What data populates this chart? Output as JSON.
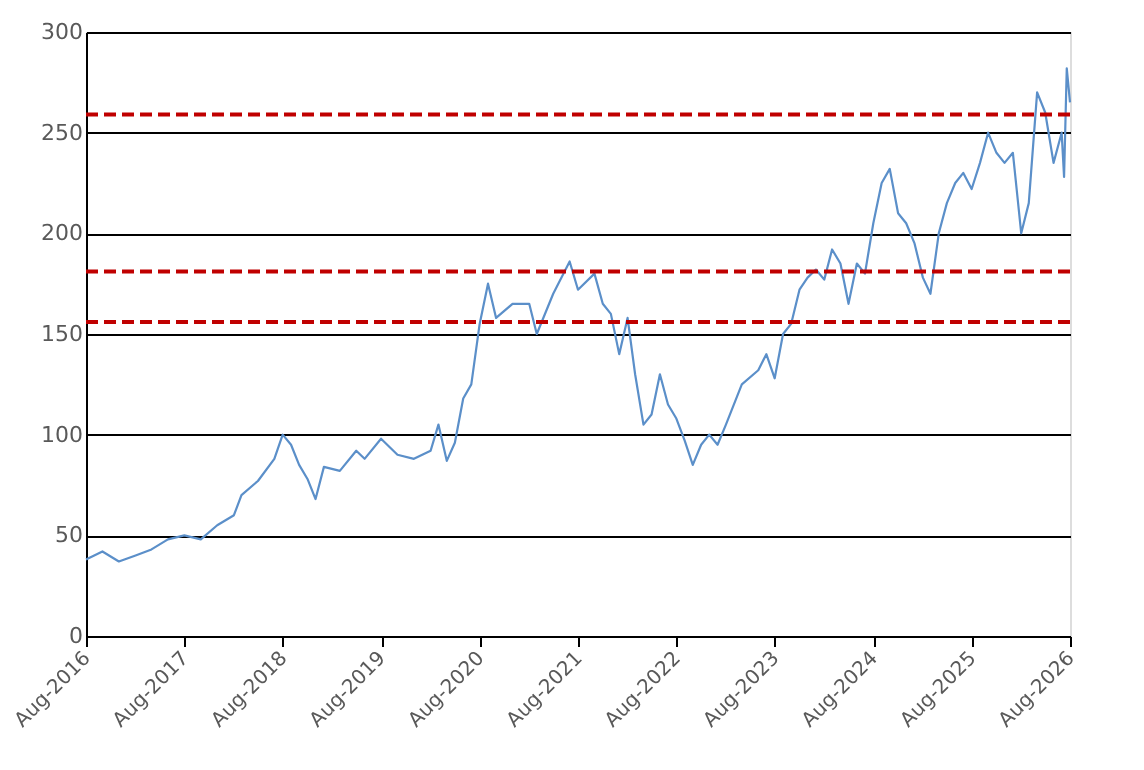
{
  "chart_data": {
    "type": "line",
    "x": [
      "2016-08",
      "2016-10",
      "2016-12",
      "2017-02",
      "2017-04",
      "2017-06",
      "2017-08",
      "2017-10",
      "2017-12",
      "2018-02",
      "2018-03",
      "2018-05",
      "2018-07",
      "2018-08",
      "2018-09",
      "2018-10",
      "2018-11",
      "2018-12",
      "2019-01",
      "2019-03",
      "2019-05",
      "2019-06",
      "2019-08",
      "2019-10",
      "2019-12",
      "2020-02",
      "2020-03",
      "2020-04",
      "2020-05",
      "2020-06",
      "2020-07",
      "2020-08",
      "2020-09",
      "2020-10",
      "2020-12",
      "2021-02",
      "2021-03",
      "2021-05",
      "2021-07",
      "2021-08",
      "2021-10",
      "2021-11",
      "2021-12",
      "2022-01",
      "2022-02",
      "2022-03",
      "2022-04",
      "2022-05",
      "2022-06",
      "2022-07",
      "2022-08",
      "2022-09",
      "2022-10",
      "2022-11",
      "2022-12",
      "2023-01",
      "2023-02",
      "2023-04",
      "2023-06",
      "2023-07",
      "2023-08",
      "2023-09",
      "2023-10",
      "2023-11",
      "2023-12",
      "2024-01",
      "2024-02",
      "2024-03",
      "2024-04",
      "2024-05",
      "2024-06",
      "2024-07",
      "2024-08",
      "2024-09",
      "2024-10",
      "2024-11",
      "2024-12",
      "2025-01",
      "2025-02",
      "2025-03",
      "2025-04",
      "2025-05",
      "2025-06",
      "2025-07",
      "2025-08",
      "2025-09",
      "2025-10",
      "2025-11",
      "2025-12",
      "2026-01",
      "2026-02",
      "2026-03",
      "2026-04",
      "2026-05",
      "2026-06",
      "2026-07",
      "2026-07-10",
      "2026-07-20",
      "2026-08"
    ],
    "series": [
      {
        "color": "#5b8fc9",
        "values": [
          38,
          42,
          37,
          40,
          43,
          48,
          50,
          48,
          55,
          60,
          70,
          77,
          88,
          100,
          95,
          85,
          78,
          68,
          84,
          82,
          92,
          88,
          98,
          90,
          88,
          92,
          105,
          87,
          96,
          118,
          125,
          155,
          175,
          158,
          165,
          165,
          150,
          170,
          186,
          172,
          180,
          165,
          160,
          140,
          158,
          130,
          105,
          110,
          130,
          115,
          108,
          97,
          85,
          95,
          100,
          95,
          105,
          125,
          132,
          140,
          128,
          150,
          155,
          172,
          178,
          182,
          177,
          192,
          185,
          165,
          185,
          180,
          205,
          225,
          232,
          210,
          205,
          195,
          178,
          170,
          200,
          215,
          225,
          230,
          222,
          235,
          250,
          240,
          235,
          240,
          200,
          215,
          270,
          260,
          235,
          250,
          228,
          282,
          265
        ]
      }
    ],
    "xlim": [
      "2016-08",
      "2026-08"
    ],
    "xticks": [
      {
        "value": "2016-08",
        "label": "Aug-2016"
      },
      {
        "value": "2017-08",
        "label": "Aug-2017"
      },
      {
        "value": "2018-08",
        "label": "Aug-2018"
      },
      {
        "value": "2019-08",
        "label": "Aug-2019"
      },
      {
        "value": "2020-08",
        "label": "Aug-2020"
      },
      {
        "value": "2021-08",
        "label": "Aug-2021"
      },
      {
        "value": "2022-08",
        "label": "Aug-2022"
      },
      {
        "value": "2023-08",
        "label": "Aug-2023"
      },
      {
        "value": "2024-08",
        "label": "Aug-2024"
      },
      {
        "value": "2025-08",
        "label": "Aug-2025"
      },
      {
        "value": "2026-08",
        "label": "Aug-2026"
      }
    ],
    "ylim": [
      0,
      300
    ],
    "yticks": [
      0,
      50,
      100,
      150,
      200,
      250,
      300
    ],
    "ref_lines": [
      {
        "axis": "y",
        "value": 259,
        "color": "#c00000",
        "line_style": "dashed"
      },
      {
        "axis": "y",
        "value": 181,
        "color": "#c00000",
        "line_style": "dashed"
      },
      {
        "axis": "y",
        "value": 156,
        "color": "#c00000",
        "line_style": "dashed"
      }
    ],
    "grid": "y",
    "marker": "none",
    "line_style": "solid"
  }
}
